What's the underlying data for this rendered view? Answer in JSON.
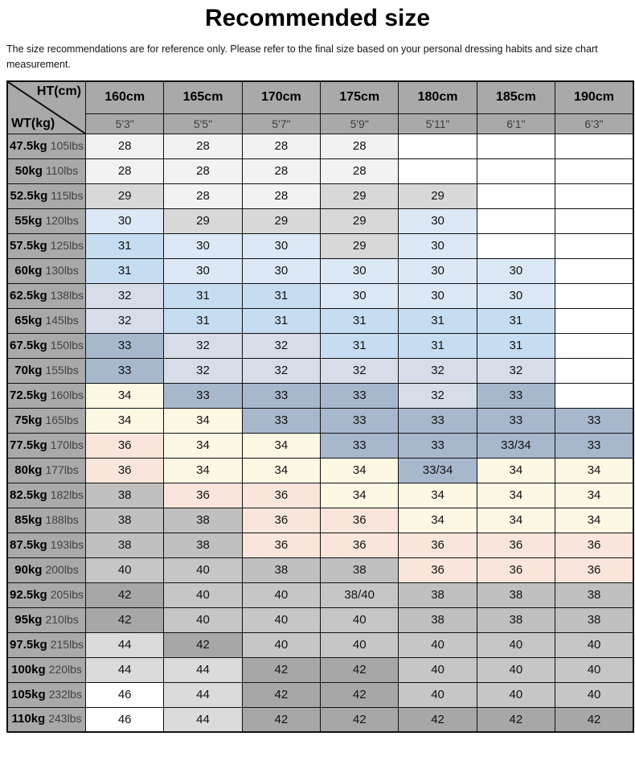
{
  "page": {
    "title": "Recommended size",
    "disclaimer": "The size recommendations are for reference only. Please refer to the final size based on your personal dressing habits and size chart measurement."
  },
  "chart_data": {
    "type": "table",
    "title": "Recommended size",
    "corner": {
      "ht": "HT(cm)",
      "wt": "WT(kg)"
    },
    "columns": [
      {
        "cm": "160cm",
        "ft": "5'3\""
      },
      {
        "cm": "165cm",
        "ft": "5'5\""
      },
      {
        "cm": "170cm",
        "ft": "5'7\""
      },
      {
        "cm": "175cm",
        "ft": "5'9\""
      },
      {
        "cm": "180cm",
        "ft": "5'11\""
      },
      {
        "cm": "185cm",
        "ft": "6'1\""
      },
      {
        "cm": "190cm",
        "ft": "6'3\""
      }
    ],
    "rows": [
      {
        "kg": "47.5kg",
        "lbs": "105lbs",
        "sizes": [
          "28",
          "28",
          "28",
          "28",
          "",
          "",
          ""
        ]
      },
      {
        "kg": "50kg",
        "lbs": "110lbs",
        "sizes": [
          "28",
          "28",
          "28",
          "28",
          "",
          "",
          ""
        ]
      },
      {
        "kg": "52.5kg",
        "lbs": "115lbs",
        "sizes": [
          "29",
          "28",
          "28",
          "29",
          "29",
          "",
          ""
        ]
      },
      {
        "kg": "55kg",
        "lbs": "120lbs",
        "sizes": [
          "30",
          "29",
          "29",
          "29",
          "30",
          "",
          ""
        ]
      },
      {
        "kg": "57.5kg",
        "lbs": "125lbs",
        "sizes": [
          "31",
          "30",
          "30",
          "29",
          "30",
          "",
          ""
        ]
      },
      {
        "kg": "60kg",
        "lbs": "130lbs",
        "sizes": [
          "31",
          "30",
          "30",
          "30",
          "30",
          "30",
          ""
        ]
      },
      {
        "kg": "62.5kg",
        "lbs": "138lbs",
        "sizes": [
          "32",
          "31",
          "31",
          "30",
          "30",
          "30",
          ""
        ]
      },
      {
        "kg": "65kg",
        "lbs": "145lbs",
        "sizes": [
          "32",
          "31",
          "31",
          "31",
          "31",
          "31",
          ""
        ]
      },
      {
        "kg": "67.5kg",
        "lbs": "150lbs",
        "sizes": [
          "33",
          "32",
          "32",
          "31",
          "31",
          "31",
          ""
        ]
      },
      {
        "kg": "70kg",
        "lbs": "155lbs",
        "sizes": [
          "33",
          "32",
          "32",
          "32",
          "32",
          "32",
          ""
        ]
      },
      {
        "kg": "72.5kg",
        "lbs": "160lbs",
        "sizes": [
          "34",
          "33",
          "33",
          "33",
          "32",
          "33",
          ""
        ]
      },
      {
        "kg": "75kg",
        "lbs": "165lbs",
        "sizes": [
          "34",
          "34",
          "33",
          "33",
          "33",
          "33",
          "33"
        ]
      },
      {
        "kg": "77.5kg",
        "lbs": "170lbs",
        "sizes": [
          "36",
          "34",
          "34",
          "33",
          "33",
          "33/34",
          "33"
        ]
      },
      {
        "kg": "80kg",
        "lbs": "177lbs",
        "sizes": [
          "36",
          "34",
          "34",
          "34",
          "33/34",
          "34",
          "34"
        ]
      },
      {
        "kg": "82.5kg",
        "lbs": "182lbs",
        "sizes": [
          "38",
          "36",
          "36",
          "34",
          "34",
          "34",
          "34"
        ]
      },
      {
        "kg": "85kg",
        "lbs": "188lbs",
        "sizes": [
          "38",
          "38",
          "36",
          "36",
          "34",
          "34",
          "34"
        ]
      },
      {
        "kg": "87.5kg",
        "lbs": "193lbs",
        "sizes": [
          "38",
          "38",
          "36",
          "36",
          "36",
          "36",
          "36"
        ]
      },
      {
        "kg": "90kg",
        "lbs": "200lbs",
        "sizes": [
          "40",
          "40",
          "38",
          "38",
          "36",
          "36",
          "36"
        ]
      },
      {
        "kg": "92.5kg",
        "lbs": "205lbs",
        "sizes": [
          "42",
          "40",
          "40",
          "38/40",
          "38",
          "38",
          "38"
        ]
      },
      {
        "kg": "95kg",
        "lbs": "210lbs",
        "sizes": [
          "42",
          "40",
          "40",
          "40",
          "38",
          "38",
          "38"
        ]
      },
      {
        "kg": "97.5kg",
        "lbs": "215lbs",
        "sizes": [
          "44",
          "42",
          "40",
          "40",
          "40",
          "40",
          "40"
        ]
      },
      {
        "kg": "100kg",
        "lbs": "220lbs",
        "sizes": [
          "44",
          "44",
          "42",
          "42",
          "40",
          "40",
          "40"
        ]
      },
      {
        "kg": "105kg",
        "lbs": "232lbs",
        "sizes": [
          "46",
          "44",
          "42",
          "42",
          "40",
          "40",
          "40"
        ]
      },
      {
        "kg": "110kg",
        "lbs": "243lbs",
        "sizes": [
          "46",
          "44",
          "42",
          "42",
          "42",
          "42",
          "42"
        ]
      }
    ]
  },
  "colors": {
    "header_bg": "#a9a9a9",
    "label_bg": "#a9a9a9",
    "empty_bg": "#ffffff",
    "size_backgrounds": {
      "28": "#f2f2f2",
      "29": "#d8d8d8",
      "30": "#dce8f5",
      "31": "#c6dcf1",
      "32": "#d6dde9",
      "33": "#a7b8cd",
      "33/34": "#a7b8cd",
      "34": "#fcf8e4",
      "36": "#f9e5db",
      "38": "#c0c0c0",
      "38/40": "#c6c6c6",
      "40": "#c6c6c6",
      "42": "#a7a7a7",
      "44": "#dbdbdb",
      "46": "#ffffff"
    }
  }
}
